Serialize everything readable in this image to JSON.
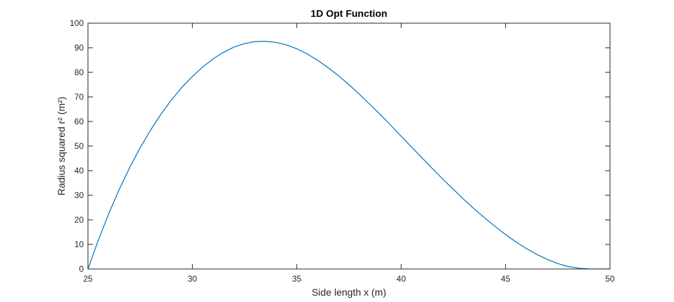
{
  "chart_data": {
    "type": "line",
    "title": "1D Opt Function",
    "xlabel": "Side length x (m)",
    "ylabel": "Radius squared r² (m²)",
    "xlim": [
      25,
      50
    ],
    "ylim": [
      0,
      100
    ],
    "xticks": [
      25,
      30,
      35,
      40,
      45,
      50
    ],
    "yticks": [
      0,
      10,
      20,
      30,
      40,
      50,
      60,
      70,
      80,
      90,
      100
    ],
    "grid": false,
    "box": true,
    "series": [
      {
        "color": "#0072BD",
        "x": [
          25,
          25.5,
          26,
          26.5,
          27,
          27.5,
          28,
          28.5,
          29,
          29.5,
          30,
          30.5,
          31,
          31.5,
          32,
          32.5,
          33,
          33.5,
          34,
          34.5,
          35,
          35.5,
          36,
          36.5,
          37,
          37.5,
          38,
          38.5,
          39,
          39.5,
          40,
          40.5,
          41,
          41.5,
          42,
          42.5,
          43,
          43.5,
          44,
          44.5,
          45,
          45.5,
          46,
          46.5,
          47,
          47.5,
          48,
          48.5,
          49,
          49.5,
          50
        ],
        "y": [
          0,
          11.8,
          22.6,
          32.4,
          41.3,
          49.3,
          56.5,
          63.0,
          68.8,
          73.9,
          78.3,
          82.2,
          85.5,
          88.2,
          90.3,
          91.7,
          92.5,
          92.6,
          92.2,
          91.2,
          89.6,
          87.5,
          84.9,
          81.9,
          78.6,
          75.0,
          71.1,
          67.0,
          62.8,
          58.5,
          54.0,
          49.6,
          45.2,
          40.8,
          36.5,
          32.4,
          28.3,
          24.4,
          20.8,
          17.3,
          14.0,
          11.0,
          8.3,
          5.9,
          3.9,
          2.2,
          1.0,
          0.3,
          0.05,
          0.01,
          0
        ]
      }
    ]
  }
}
